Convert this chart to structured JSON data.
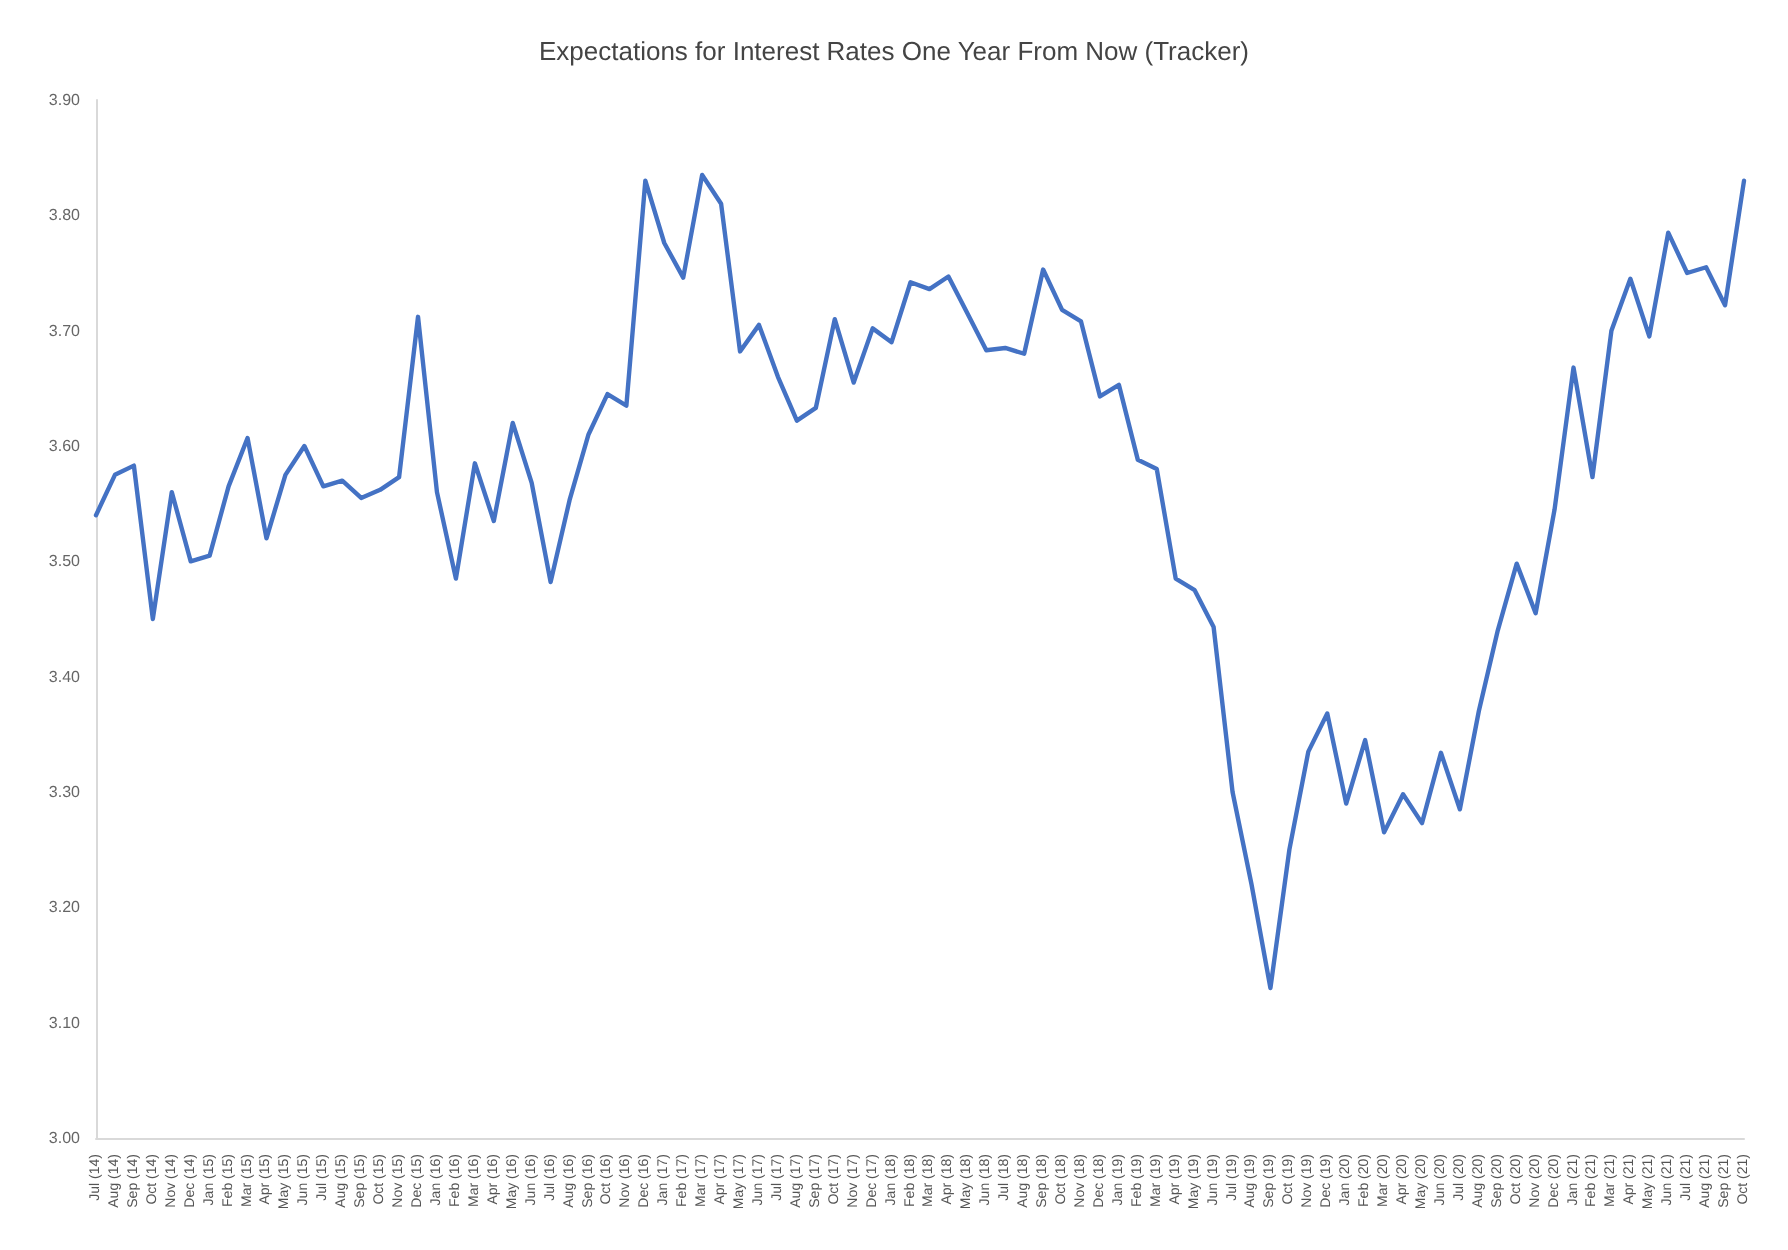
{
  "chart_data": {
    "type": "line",
    "title": "Expectations for Interest Rates One Year From Now (Tracker)",
    "categories": [
      "Jul (14)",
      "Aug (14)",
      "Sep (14)",
      "Oct (14)",
      "Nov (14)",
      "Dec (14)",
      "Jan (15)",
      "Feb (15)",
      "Mar (15)",
      "Apr (15)",
      "May (15)",
      "Jun (15)",
      "Jul (15)",
      "Aug (15)",
      "Sep (15)",
      "Oct (15)",
      "Nov (15)",
      "Dec (15)",
      "Jan (16)",
      "Feb (16)",
      "Mar (16)",
      "Apr (16)",
      "May (16)",
      "Jun (16)",
      "Jul (16)",
      "Aug (16)",
      "Sep (16)",
      "Oct (16)",
      "Nov (16)",
      "Dec (16)",
      "Jan (17)",
      "Feb (17)",
      "Mar (17)",
      "Apr (17)",
      "May (17)",
      "Jun (17)",
      "Jul (17)",
      "Aug (17)",
      "Sep (17)",
      "Oct (17)",
      "Nov (17)",
      "Dec (17)",
      "Jan (18)",
      "Feb (18)",
      "Mar (18)",
      "Apr (18)",
      "May (18)",
      "Jun (18)",
      "Jul (18)",
      "Aug (18)",
      "Sep (18)",
      "Oct (18)",
      "Nov (18)",
      "Dec (18)",
      "Jan (19)",
      "Feb (19)",
      "Mar (19)",
      "Apr (19)",
      "May (19)",
      "Jun (19)",
      "Jul (19)",
      "Aug (19)",
      "Sep (19)",
      "Oct (19)",
      "Nov (19)",
      "Dec (19)",
      "Jan (20)",
      "Feb (20)",
      "Mar (20)",
      "Apr (20)",
      "May (20)",
      "Jun (20)",
      "Jul (20)",
      "Aug (20)",
      "Sep (20)",
      "Oct (20)",
      "Nov (20)",
      "Dec (20)",
      "Jan (21)",
      "Feb (21)",
      "Mar (21)",
      "Apr (21)",
      "May (21)",
      "Jun (21)",
      "Jul (21)",
      "Aug (21)",
      "Sep (21)",
      "Oct (21)"
    ],
    "series": [
      {
        "color": "#4472c4",
        "values": [
          3.54,
          3.575,
          3.583,
          3.45,
          3.56,
          3.5,
          3.505,
          3.565,
          3.607,
          3.52,
          3.575,
          3.6,
          3.565,
          3.57,
          3.555,
          3.562,
          3.573,
          3.712,
          3.56,
          3.485,
          3.585,
          3.535,
          3.62,
          3.568,
          3.482,
          3.553,
          3.61,
          3.645,
          3.635,
          3.83,
          3.776,
          3.746,
          3.835,
          3.81,
          3.682,
          3.705,
          3.66,
          3.622,
          3.633,
          3.71,
          3.655,
          3.702,
          3.69,
          3.742,
          3.736,
          3.747,
          3.715,
          3.683,
          3.685,
          3.68,
          3.753,
          3.718,
          3.708,
          3.643,
          3.653,
          3.588,
          3.58,
          3.485,
          3.475,
          3.443,
          3.3,
          3.22,
          3.13,
          3.25,
          3.335,
          3.368,
          3.29,
          3.345,
          3.265,
          3.298,
          3.273,
          3.334,
          3.285,
          3.37,
          3.44,
          3.498,
          3.455,
          3.545,
          3.668,
          3.573,
          3.7,
          3.745,
          3.695,
          3.785,
          3.75,
          3.755,
          3.722,
          3.83
        ]
      }
    ],
    "ylim": [
      3.0,
      3.9
    ],
    "yticks": [
      {
        "value": 3.0,
        "label": "3.00"
      },
      {
        "value": 3.1,
        "label": "3.10"
      },
      {
        "value": 3.2,
        "label": "3.20"
      },
      {
        "value": 3.3,
        "label": "3.30"
      },
      {
        "value": 3.4,
        "label": "3.40"
      },
      {
        "value": 3.5,
        "label": "3.50"
      },
      {
        "value": 3.6,
        "label": "3.60"
      },
      {
        "value": 3.7,
        "label": "3.70"
      },
      {
        "value": 3.8,
        "label": "3.80"
      },
      {
        "value": 3.9,
        "label": "3.90"
      }
    ],
    "grid": false,
    "marker": "none",
    "line_style": "solid"
  }
}
